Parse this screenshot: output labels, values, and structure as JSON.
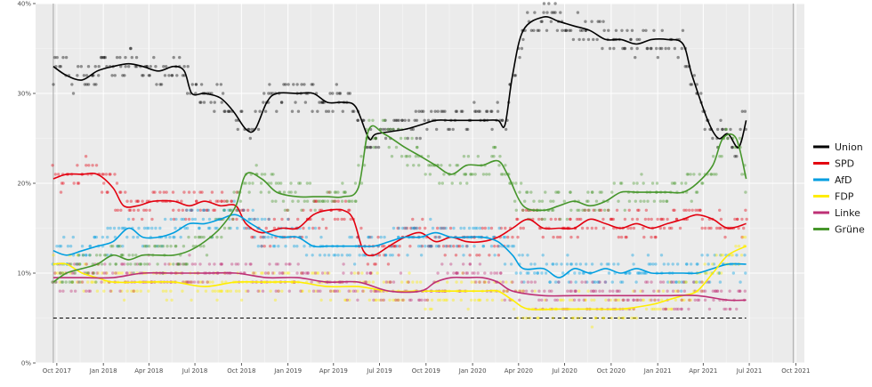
{
  "chart_data": {
    "type": "line",
    "title": "",
    "xlabel": "",
    "ylabel": "",
    "ylim": [
      0,
      40
    ],
    "x_range": [
      "2017-08-20",
      "2021-10-18"
    ],
    "grid": true,
    "legend_position": "right",
    "background": "#ebebeb",
    "y_ticks": [
      {
        "value": 0,
        "label": "0%"
      },
      {
        "value": 10,
        "label": "10%"
      },
      {
        "value": 20,
        "label": "20%"
      },
      {
        "value": 30,
        "label": "30%"
      },
      {
        "value": 40,
        "label": "40%"
      }
    ],
    "x_ticks": [
      {
        "date": "2017-10-01",
        "label": "Oct 2017"
      },
      {
        "date": "2018-01-01",
        "label": "Jan 2018"
      },
      {
        "date": "2018-04-01",
        "label": "Apr 2018"
      },
      {
        "date": "2018-07-01",
        "label": "Jul 2018"
      },
      {
        "date": "2018-10-01",
        "label": "Oct 2018"
      },
      {
        "date": "2019-01-01",
        "label": "Jan 2019"
      },
      {
        "date": "2019-04-01",
        "label": "Apr 2019"
      },
      {
        "date": "2019-07-01",
        "label": "Jul 2019"
      },
      {
        "date": "2019-10-01",
        "label": "Oct 2019"
      },
      {
        "date": "2020-01-01",
        "label": "Jan 2020"
      },
      {
        "date": "2020-04-01",
        "label": "Apr 2020"
      },
      {
        "date": "2020-07-01",
        "label": "Jul 2020"
      },
      {
        "date": "2020-10-01",
        "label": "Oct 2020"
      },
      {
        "date": "2021-01-01",
        "label": "Jan 2021"
      },
      {
        "date": "2021-04-01",
        "label": "Apr 2021"
      },
      {
        "date": "2021-07-01",
        "label": "Jul 2021"
      },
      {
        "date": "2021-10-01",
        "label": "Oct 2021"
      }
    ],
    "vertical_markers": [
      "2017-09-24",
      "2021-09-26"
    ],
    "threshold": {
      "value": 5,
      "from": "2017-09-24",
      "to": "2021-06-25",
      "style": "dashed",
      "color": "#000000"
    },
    "series": [
      {
        "name": "Union",
        "color": "#000000",
        "points": [
          [
            "2017-09-24",
            33
          ],
          [
            "2017-10-20",
            32
          ],
          [
            "2017-11-20",
            31.5
          ],
          [
            "2017-12-20",
            32.5
          ],
          [
            "2018-01-20",
            33
          ],
          [
            "2018-02-20",
            33.3
          ],
          [
            "2018-03-20",
            33
          ],
          [
            "2018-04-20",
            32.5
          ],
          [
            "2018-05-20",
            33
          ],
          [
            "2018-06-10",
            32.5
          ],
          [
            "2018-06-25",
            30
          ],
          [
            "2018-07-20",
            30
          ],
          [
            "2018-08-20",
            29.5
          ],
          [
            "2018-09-15",
            28
          ],
          [
            "2018-10-10",
            26
          ],
          [
            "2018-10-28",
            26
          ],
          [
            "2018-11-20",
            29
          ],
          [
            "2018-12-10",
            30
          ],
          [
            "2019-01-20",
            30
          ],
          [
            "2019-02-20",
            30
          ],
          [
            "2019-03-20",
            29
          ],
          [
            "2019-04-20",
            29
          ],
          [
            "2019-05-15",
            28.5
          ],
          [
            "2019-06-10",
            25
          ],
          [
            "2019-06-25",
            25.5
          ],
          [
            "2019-08-20",
            26
          ],
          [
            "2019-09-20",
            26.5
          ],
          [
            "2019-10-20",
            27
          ],
          [
            "2019-11-20",
            27
          ],
          [
            "2019-12-20",
            27
          ],
          [
            "2020-01-20",
            27
          ],
          [
            "2020-02-20",
            27
          ],
          [
            "2020-03-05",
            26.5
          ],
          [
            "2020-03-20",
            32
          ],
          [
            "2020-04-10",
            37
          ],
          [
            "2020-05-20",
            38.5
          ],
          [
            "2020-06-20",
            38
          ],
          [
            "2020-07-20",
            37.5
          ],
          [
            "2020-08-20",
            37
          ],
          [
            "2020-09-20",
            36
          ],
          [
            "2020-10-20",
            36
          ],
          [
            "2020-11-20",
            35.5
          ],
          [
            "2020-12-20",
            36
          ],
          [
            "2021-01-20",
            36
          ],
          [
            "2021-02-20",
            35.5
          ],
          [
            "2021-03-10",
            32
          ],
          [
            "2021-04-10",
            27
          ],
          [
            "2021-05-01",
            25
          ],
          [
            "2021-05-20",
            25.5
          ],
          [
            "2021-06-10",
            24
          ],
          [
            "2021-06-25",
            27
          ]
        ]
      },
      {
        "name": "SPD",
        "color": "#e3000f",
        "points": [
          [
            "2017-09-24",
            20.5
          ],
          [
            "2017-10-20",
            21
          ],
          [
            "2017-11-20",
            21
          ],
          [
            "2017-12-20",
            21
          ],
          [
            "2018-01-20",
            19.5
          ],
          [
            "2018-02-10",
            17.5
          ],
          [
            "2018-03-10",
            17.5
          ],
          [
            "2018-04-10",
            18
          ],
          [
            "2018-05-20",
            18
          ],
          [
            "2018-06-20",
            17.5
          ],
          [
            "2018-07-20",
            18
          ],
          [
            "2018-08-20",
            17.5
          ],
          [
            "2018-09-20",
            17.5
          ],
          [
            "2018-10-10",
            15.5
          ],
          [
            "2018-11-10",
            14.5
          ],
          [
            "2018-12-20",
            15
          ],
          [
            "2019-01-20",
            15
          ],
          [
            "2019-02-20",
            16.5
          ],
          [
            "2019-03-20",
            17
          ],
          [
            "2019-04-20",
            17
          ],
          [
            "2019-05-10",
            16
          ],
          [
            "2019-05-30",
            12.5
          ],
          [
            "2019-06-20",
            12
          ],
          [
            "2019-07-20",
            13
          ],
          [
            "2019-08-20",
            14
          ],
          [
            "2019-09-20",
            14.5
          ],
          [
            "2019-10-20",
            13.5
          ],
          [
            "2019-11-20",
            14
          ],
          [
            "2019-12-20",
            13.5
          ],
          [
            "2020-01-20",
            13.5
          ],
          [
            "2020-02-20",
            14
          ],
          [
            "2020-03-20",
            15
          ],
          [
            "2020-04-20",
            16
          ],
          [
            "2020-05-20",
            15
          ],
          [
            "2020-06-20",
            15
          ],
          [
            "2020-07-20",
            15
          ],
          [
            "2020-08-20",
            16
          ],
          [
            "2020-09-20",
            15.5
          ],
          [
            "2020-10-20",
            15
          ],
          [
            "2020-11-20",
            15.5
          ],
          [
            "2020-12-20",
            15
          ],
          [
            "2021-01-20",
            15.5
          ],
          [
            "2021-02-20",
            16
          ],
          [
            "2021-03-20",
            16.5
          ],
          [
            "2021-04-20",
            16
          ],
          [
            "2021-05-20",
            15
          ],
          [
            "2021-06-25",
            15.5
          ]
        ]
      },
      {
        "name": "AfD",
        "color": "#009ee0",
        "points": [
          [
            "2017-09-24",
            12.5
          ],
          [
            "2017-10-20",
            12
          ],
          [
            "2017-11-20",
            12.5
          ],
          [
            "2017-12-20",
            13
          ],
          [
            "2018-01-20",
            13.5
          ],
          [
            "2018-02-20",
            15
          ],
          [
            "2018-03-20",
            14
          ],
          [
            "2018-04-20",
            14
          ],
          [
            "2018-05-20",
            14.5
          ],
          [
            "2018-06-20",
            15.5
          ],
          [
            "2018-07-20",
            15.5
          ],
          [
            "2018-08-20",
            16
          ],
          [
            "2018-09-20",
            16.5
          ],
          [
            "2018-10-20",
            15.5
          ],
          [
            "2018-11-20",
            14.5
          ],
          [
            "2018-12-20",
            14
          ],
          [
            "2019-01-20",
            14
          ],
          [
            "2019-02-20",
            13
          ],
          [
            "2019-03-20",
            13
          ],
          [
            "2019-04-20",
            13
          ],
          [
            "2019-05-20",
            13
          ],
          [
            "2019-06-20",
            13
          ],
          [
            "2019-07-20",
            13.5
          ],
          [
            "2019-08-20",
            14
          ],
          [
            "2019-09-20",
            14
          ],
          [
            "2019-10-20",
            14.5
          ],
          [
            "2019-11-20",
            14
          ],
          [
            "2019-12-20",
            14
          ],
          [
            "2020-01-20",
            14
          ],
          [
            "2020-02-20",
            13.5
          ],
          [
            "2020-03-20",
            12
          ],
          [
            "2020-04-10",
            10.5
          ],
          [
            "2020-05-20",
            10.5
          ],
          [
            "2020-06-20",
            9.5
          ],
          [
            "2020-07-20",
            10.5
          ],
          [
            "2020-08-20",
            10
          ],
          [
            "2020-09-20",
            10.5
          ],
          [
            "2020-10-20",
            10
          ],
          [
            "2020-11-20",
            10.5
          ],
          [
            "2020-12-20",
            10
          ],
          [
            "2021-01-20",
            10
          ],
          [
            "2021-02-20",
            10
          ],
          [
            "2021-03-20",
            10
          ],
          [
            "2021-04-20",
            10.5
          ],
          [
            "2021-05-20",
            11
          ],
          [
            "2021-06-25",
            11
          ]
        ]
      },
      {
        "name": "FDP",
        "color": "#ffed00",
        "points": [
          [
            "2017-09-24",
            11
          ],
          [
            "2017-10-20",
            11
          ],
          [
            "2017-11-20",
            10
          ],
          [
            "2017-12-20",
            9.5
          ],
          [
            "2018-01-20",
            9
          ],
          [
            "2018-03-20",
            9
          ],
          [
            "2018-05-20",
            9
          ],
          [
            "2018-07-20",
            8.5
          ],
          [
            "2018-09-20",
            9
          ],
          [
            "2018-11-20",
            9
          ],
          [
            "2019-01-20",
            9
          ],
          [
            "2019-03-20",
            8.5
          ],
          [
            "2019-05-20",
            8.5
          ],
          [
            "2019-07-20",
            8
          ],
          [
            "2019-09-20",
            8
          ],
          [
            "2019-11-20",
            8
          ],
          [
            "2020-01-20",
            8
          ],
          [
            "2020-02-20",
            8
          ],
          [
            "2020-03-20",
            7
          ],
          [
            "2020-04-20",
            6
          ],
          [
            "2020-06-20",
            6
          ],
          [
            "2020-08-20",
            6
          ],
          [
            "2020-10-20",
            6
          ],
          [
            "2020-12-20",
            6.5
          ],
          [
            "2021-01-20",
            7
          ],
          [
            "2021-02-20",
            7.5
          ],
          [
            "2021-03-20",
            8
          ],
          [
            "2021-04-20",
            10
          ],
          [
            "2021-05-20",
            12
          ],
          [
            "2021-06-25",
            13
          ]
        ]
      },
      {
        "name": "Linke",
        "color": "#be3075",
        "points": [
          [
            "2017-09-24",
            9.5
          ],
          [
            "2017-11-20",
            9.5
          ],
          [
            "2018-01-20",
            9.5
          ],
          [
            "2018-03-20",
            10
          ],
          [
            "2018-05-20",
            10
          ],
          [
            "2018-07-20",
            10
          ],
          [
            "2018-09-20",
            10
          ],
          [
            "2018-11-20",
            9.5
          ],
          [
            "2019-01-20",
            9.5
          ],
          [
            "2019-03-20",
            9
          ],
          [
            "2019-05-20",
            9
          ],
          [
            "2019-07-20",
            8
          ],
          [
            "2019-09-20",
            8
          ],
          [
            "2019-10-20",
            9
          ],
          [
            "2019-11-20",
            9.5
          ],
          [
            "2019-12-20",
            9.5
          ],
          [
            "2020-01-20",
            9.5
          ],
          [
            "2020-02-20",
            9
          ],
          [
            "2020-03-20",
            8
          ],
          [
            "2020-05-20",
            7.5
          ],
          [
            "2020-07-20",
            7.5
          ],
          [
            "2020-09-20",
            7.5
          ],
          [
            "2020-11-20",
            7.5
          ],
          [
            "2021-01-20",
            7.5
          ],
          [
            "2021-03-20",
            7.5
          ],
          [
            "2021-05-20",
            7
          ],
          [
            "2021-06-25",
            7
          ]
        ]
      },
      {
        "name": "Grüne",
        "color": "#46962b",
        "points": [
          [
            "2017-09-24",
            9
          ],
          [
            "2017-10-20",
            10
          ],
          [
            "2017-11-20",
            10.5
          ],
          [
            "2017-12-20",
            11
          ],
          [
            "2018-01-20",
            12
          ],
          [
            "2018-02-20",
            11.5
          ],
          [
            "2018-03-20",
            12
          ],
          [
            "2018-04-20",
            12
          ],
          [
            "2018-05-20",
            12
          ],
          [
            "2018-06-20",
            12.5
          ],
          [
            "2018-07-20",
            13.5
          ],
          [
            "2018-08-20",
            15
          ],
          [
            "2018-09-20",
            17.5
          ],
          [
            "2018-10-10",
            21
          ],
          [
            "2018-11-10",
            20.5
          ],
          [
            "2018-12-10",
            19
          ],
          [
            "2019-01-20",
            18.5
          ],
          [
            "2019-02-20",
            18.5
          ],
          [
            "2019-03-20",
            18.5
          ],
          [
            "2019-04-20",
            18.5
          ],
          [
            "2019-05-20",
            19.5
          ],
          [
            "2019-06-10",
            26
          ],
          [
            "2019-07-10",
            25.5
          ],
          [
            "2019-08-20",
            24
          ],
          [
            "2019-09-20",
            23
          ],
          [
            "2019-10-20",
            22
          ],
          [
            "2019-11-20",
            21
          ],
          [
            "2019-12-20",
            22
          ],
          [
            "2020-01-20",
            22
          ],
          [
            "2020-02-20",
            22.5
          ],
          [
            "2020-03-10",
            21
          ],
          [
            "2020-04-10",
            17.5
          ],
          [
            "2020-05-20",
            17
          ],
          [
            "2020-06-20",
            17.5
          ],
          [
            "2020-07-20",
            18
          ],
          [
            "2020-08-20",
            17.5
          ],
          [
            "2020-09-20",
            18
          ],
          [
            "2020-10-20",
            19
          ],
          [
            "2020-11-20",
            19
          ],
          [
            "2020-12-20",
            19
          ],
          [
            "2021-01-20",
            19
          ],
          [
            "2021-02-20",
            19
          ],
          [
            "2021-03-20",
            20
          ],
          [
            "2021-04-20",
            22
          ],
          [
            "2021-05-10",
            25
          ],
          [
            "2021-06-05",
            25
          ],
          [
            "2021-06-25",
            20.5
          ]
        ]
      }
    ]
  }
}
